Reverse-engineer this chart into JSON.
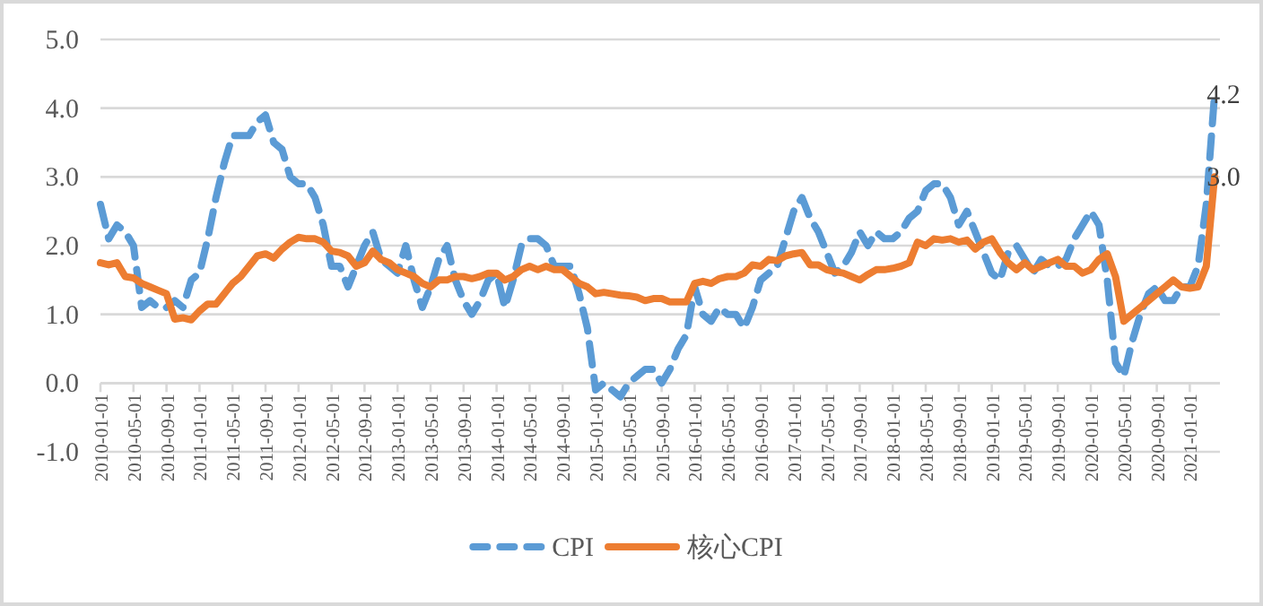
{
  "chart_data": {
    "type": "line",
    "categories": [
      "2010-01-01",
      null,
      null,
      null,
      "2010-05-01",
      null,
      null,
      null,
      "2010-09-01",
      null,
      null,
      null,
      "2011-01-01",
      null,
      null,
      null,
      "2011-05-01",
      null,
      null,
      null,
      "2011-09-01",
      null,
      null,
      null,
      "2012-01-01",
      null,
      null,
      null,
      "2012-05-01",
      null,
      null,
      null,
      "2012-09-01",
      null,
      null,
      null,
      "2013-01-01",
      null,
      null,
      null,
      "2013-05-01",
      null,
      null,
      null,
      "2013-09-01",
      null,
      null,
      null,
      "2014-01-01",
      null,
      null,
      null,
      "2014-05-01",
      null,
      null,
      null,
      "2014-09-01",
      null,
      null,
      null,
      "2015-01-01",
      null,
      null,
      null,
      "2015-05-01",
      null,
      null,
      null,
      "2015-09-01",
      null,
      null,
      null,
      "2016-01-01",
      null,
      null,
      null,
      "2016-05-01",
      null,
      null,
      null,
      "2016-09-01",
      null,
      null,
      null,
      "2017-01-01",
      null,
      null,
      null,
      "2017-05-01",
      null,
      null,
      null,
      "2017-09-01",
      null,
      null,
      null,
      "2018-01-01",
      null,
      null,
      null,
      "2018-05-01",
      null,
      null,
      null,
      "2018-09-01",
      null,
      null,
      null,
      "2019-01-01",
      null,
      null,
      null,
      "2019-05-01",
      null,
      null,
      null,
      "2019-09-01",
      null,
      null,
      null,
      "2020-01-01",
      null,
      null,
      null,
      "2020-05-01",
      null,
      null,
      null,
      "2020-09-01",
      null,
      null,
      null,
      "2021-01-01",
      null,
      null,
      null
    ],
    "series": [
      {
        "name": "CPI",
        "color": "#5b9bd5",
        "line_style": "dashed",
        "values": [
          2.6,
          2.1,
          2.3,
          2.2,
          2.0,
          1.1,
          1.2,
          1.1,
          1.1,
          1.2,
          1.1,
          1.5,
          1.6,
          2.1,
          2.7,
          3.2,
          3.6,
          3.6,
          3.6,
          3.8,
          3.9,
          3.5,
          3.4,
          3.0,
          2.9,
          2.9,
          2.7,
          2.3,
          1.7,
          1.7,
          1.4,
          1.7,
          2.0,
          2.2,
          1.8,
          1.7,
          1.6,
          2.0,
          1.5,
          1.1,
          1.4,
          1.8,
          2.0,
          1.5,
          1.2,
          1.0,
          1.2,
          1.5,
          1.6,
          1.1,
          1.5,
          2.0,
          2.1,
          2.1,
          2.0,
          1.7,
          1.7,
          1.7,
          1.3,
          0.8,
          -0.1,
          0.0,
          -0.1,
          -0.2,
          0.0,
          0.1,
          0.2,
          0.2,
          0.0,
          0.2,
          0.5,
          0.7,
          1.4,
          1.0,
          0.9,
          1.1,
          1.0,
          1.0,
          0.8,
          1.1,
          1.5,
          1.6,
          1.7,
          2.1,
          2.5,
          2.7,
          2.4,
          2.2,
          1.9,
          1.6,
          1.7,
          1.9,
          2.2,
          2.0,
          2.2,
          2.1,
          2.1,
          2.2,
          2.4,
          2.5,
          2.8,
          2.9,
          2.9,
          2.7,
          2.3,
          2.5,
          2.2,
          1.9,
          1.6,
          1.5,
          1.9,
          2.0,
          1.8,
          1.6,
          1.8,
          1.7,
          1.7,
          1.8,
          2.1,
          2.3,
          2.5,
          2.3,
          1.5,
          0.3,
          0.1,
          0.6,
          1.0,
          1.3,
          1.4,
          1.2,
          1.2,
          1.4,
          1.4,
          1.7,
          2.6,
          4.2
        ],
        "value_labels": [
          null,
          null,
          null,
          null,
          null,
          null,
          null,
          null,
          null,
          null,
          null,
          null,
          null,
          null,
          null,
          null,
          null,
          null,
          null,
          null,
          null,
          null,
          null,
          null,
          null,
          null,
          null,
          null,
          null,
          null,
          null,
          null,
          null,
          null,
          null,
          null,
          null,
          null,
          null,
          null,
          null,
          null,
          null,
          null,
          null,
          null,
          null,
          null,
          null,
          null,
          null,
          null,
          null,
          null,
          null,
          null,
          null,
          null,
          null,
          null,
          null,
          null,
          null,
          null,
          null,
          null,
          null,
          null,
          null,
          null,
          null,
          null,
          null,
          null,
          null,
          null,
          null,
          null,
          null,
          null,
          null,
          null,
          null,
          null,
          null,
          null,
          null,
          null,
          null,
          null,
          null,
          null,
          null,
          null,
          null,
          null,
          null,
          null,
          null,
          null,
          null,
          null,
          null,
          null,
          null,
          null,
          null,
          null,
          null,
          null,
          null,
          null,
          null,
          null,
          null,
          null,
          null,
          null,
          null,
          null,
          null,
          null,
          null,
          null,
          null,
          null,
          null,
          null,
          null,
          null,
          null,
          null,
          null,
          null,
          null,
          "4.2"
        ]
      },
      {
        "name": "核心CPI",
        "color": "#ed7d31",
        "line_style": "solid",
        "values": [
          1.75,
          1.72,
          1.75,
          1.55,
          1.53,
          1.45,
          1.4,
          1.35,
          1.3,
          0.93,
          0.95,
          0.92,
          1.05,
          1.15,
          1.15,
          1.3,
          1.45,
          1.55,
          1.7,
          1.85,
          1.88,
          1.82,
          1.95,
          2.05,
          2.12,
          2.1,
          2.1,
          2.05,
          1.92,
          1.9,
          1.85,
          1.7,
          1.75,
          1.92,
          1.8,
          1.75,
          1.65,
          1.6,
          1.55,
          1.45,
          1.4,
          1.5,
          1.5,
          1.55,
          1.55,
          1.52,
          1.55,
          1.6,
          1.6,
          1.5,
          1.55,
          1.65,
          1.7,
          1.65,
          1.7,
          1.65,
          1.65,
          1.55,
          1.45,
          1.4,
          1.3,
          1.32,
          1.3,
          1.28,
          1.27,
          1.25,
          1.2,
          1.23,
          1.23,
          1.18,
          1.18,
          1.18,
          1.45,
          1.48,
          1.45,
          1.52,
          1.55,
          1.55,
          1.6,
          1.72,
          1.7,
          1.8,
          1.78,
          1.85,
          1.88,
          1.9,
          1.72,
          1.72,
          1.65,
          1.62,
          1.6,
          1.55,
          1.5,
          1.58,
          1.65,
          1.65,
          1.67,
          1.7,
          1.75,
          2.05,
          2.0,
          2.1,
          2.08,
          2.1,
          2.05,
          2.08,
          1.95,
          2.05,
          2.1,
          1.9,
          1.75,
          1.65,
          1.75,
          1.65,
          1.7,
          1.75,
          1.8,
          1.7,
          1.7,
          1.6,
          1.65,
          1.8,
          1.88,
          1.55,
          0.9,
          1.0,
          1.1,
          1.2,
          1.3,
          1.4,
          1.5,
          1.4,
          1.38,
          1.4,
          1.7,
          3.0
        ],
        "value_labels": [
          null,
          null,
          null,
          null,
          null,
          null,
          null,
          null,
          null,
          null,
          null,
          null,
          null,
          null,
          null,
          null,
          null,
          null,
          null,
          null,
          null,
          null,
          null,
          null,
          null,
          null,
          null,
          null,
          null,
          null,
          null,
          null,
          null,
          null,
          null,
          null,
          null,
          null,
          null,
          null,
          null,
          null,
          null,
          null,
          null,
          null,
          null,
          null,
          null,
          null,
          null,
          null,
          null,
          null,
          null,
          null,
          null,
          null,
          null,
          null,
          null,
          null,
          null,
          null,
          null,
          null,
          null,
          null,
          null,
          null,
          null,
          null,
          null,
          null,
          null,
          null,
          null,
          null,
          null,
          null,
          null,
          null,
          null,
          null,
          null,
          null,
          null,
          null,
          null,
          null,
          null,
          null,
          null,
          null,
          null,
          null,
          null,
          null,
          null,
          null,
          null,
          null,
          null,
          null,
          null,
          null,
          null,
          null,
          null,
          null,
          null,
          null,
          null,
          null,
          null,
          null,
          null,
          null,
          null,
          null,
          null,
          null,
          null,
          null,
          null,
          null,
          null,
          null,
          null,
          null,
          null,
          null,
          null,
          null,
          null,
          "3.0"
        ]
      }
    ],
    "ylim": [
      -1,
      5
    ],
    "yticks": [
      {
        "value": -1,
        "label": "-1.0"
      },
      {
        "value": 0,
        "label": "0.0"
      },
      {
        "value": 1,
        "label": "1.0"
      },
      {
        "value": 2,
        "label": "2.0"
      },
      {
        "value": 3,
        "label": "3.0"
      },
      {
        "value": 4,
        "label": "4.0"
      },
      {
        "value": 5,
        "label": "5.0"
      }
    ],
    "grid": "y",
    "legend": "bottom"
  }
}
